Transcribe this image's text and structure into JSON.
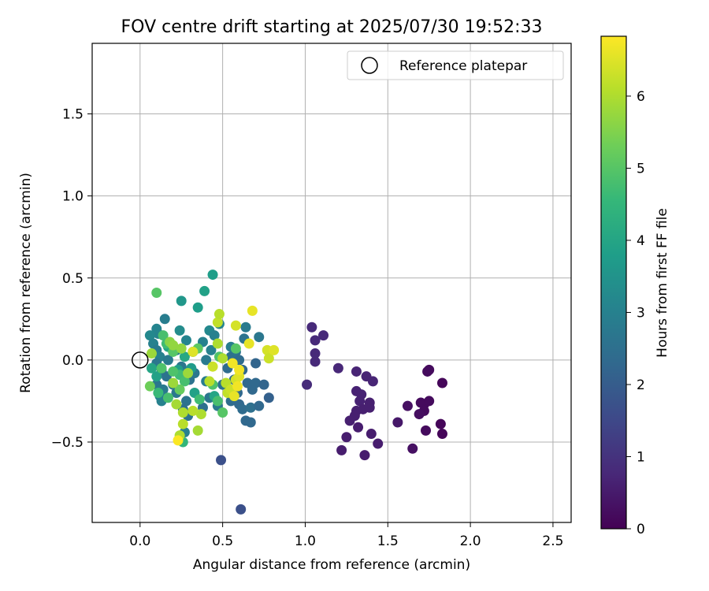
{
  "chart_data": {
    "type": "scatter",
    "title": "FOV centre drift starting at 2025/07/30 19:52:33",
    "xlabel": "Angular distance from reference (arcmin)",
    "ylabel": "Rotation from reference (arcmin)",
    "xlim": [
      -0.29,
      2.61
    ],
    "ylim": [
      -0.99,
      1.93
    ],
    "xticks": [
      0.0,
      0.5,
      1.0,
      1.5,
      2.0,
      2.5
    ],
    "xtick_labels": [
      "0.0",
      "0.5",
      "1.0",
      "1.5",
      "2.0",
      "2.5"
    ],
    "yticks": [
      -0.5,
      0.0,
      0.5,
      1.0,
      1.5
    ],
    "ytick_labels": [
      "−0.5",
      "0.0",
      "0.5",
      "1.0",
      "1.5"
    ],
    "grid": true,
    "legend": {
      "placement": "top-right",
      "entries": [
        "Reference platepar"
      ]
    },
    "reference_point": {
      "x": 0.0,
      "y": 0.0,
      "label": "Reference platepar"
    },
    "colorbar": {
      "label": "Hours from first FF file",
      "min": 0,
      "max": 6.83,
      "ticks": [
        0,
        1,
        2,
        3,
        4,
        5,
        6
      ],
      "tick_labels": [
        "0",
        "1",
        "2",
        "3",
        "4",
        "5",
        "6"
      ],
      "colormap": "viridis",
      "stops": [
        "#440154",
        "#482878",
        "#3e4989",
        "#31688e",
        "#26828e",
        "#1f9e89",
        "#35b779",
        "#6ece58",
        "#b5de2b",
        "#fde725"
      ]
    },
    "series": [
      {
        "values_note": "x = angular distance (arcmin), y = rotation (arcmin), c = hours from first FF file",
        "points": [
          {
            "x": 1.04,
            "y": 0.2,
            "c": 0.8
          },
          {
            "x": 1.11,
            "y": 0.15,
            "c": 0.8
          },
          {
            "x": 1.06,
            "y": 0.12,
            "c": 0.8
          },
          {
            "x": 1.06,
            "y": 0.04,
            "c": 0.8
          },
          {
            "x": 1.06,
            "y": -0.01,
            "c": 0.8
          },
          {
            "x": 1.01,
            "y": -0.15,
            "c": 0.85
          },
          {
            "x": 1.2,
            "y": -0.05,
            "c": 0.75
          },
          {
            "x": 1.31,
            "y": -0.07,
            "c": 0.7
          },
          {
            "x": 1.37,
            "y": -0.1,
            "c": 0.7
          },
          {
            "x": 1.41,
            "y": -0.13,
            "c": 0.7
          },
          {
            "x": 1.31,
            "y": -0.19,
            "c": 0.65
          },
          {
            "x": 1.34,
            "y": -0.21,
            "c": 0.65
          },
          {
            "x": 1.33,
            "y": -0.25,
            "c": 0.65
          },
          {
            "x": 1.39,
            "y": -0.26,
            "c": 0.6
          },
          {
            "x": 1.35,
            "y": -0.3,
            "c": 0.6
          },
          {
            "x": 1.39,
            "y": -0.29,
            "c": 0.6
          },
          {
            "x": 1.31,
            "y": -0.31,
            "c": 0.6
          },
          {
            "x": 1.3,
            "y": -0.34,
            "c": 0.6
          },
          {
            "x": 1.27,
            "y": -0.37,
            "c": 0.6
          },
          {
            "x": 1.32,
            "y": -0.41,
            "c": 0.55
          },
          {
            "x": 1.25,
            "y": -0.47,
            "c": 0.55
          },
          {
            "x": 1.22,
            "y": -0.55,
            "c": 0.55
          },
          {
            "x": 1.36,
            "y": -0.58,
            "c": 0.55
          },
          {
            "x": 1.4,
            "y": -0.45,
            "c": 0.55
          },
          {
            "x": 1.44,
            "y": -0.51,
            "c": 0.55
          },
          {
            "x": 1.56,
            "y": -0.38,
            "c": 0.45
          },
          {
            "x": 1.75,
            "y": -0.06,
            "c": 0.2
          },
          {
            "x": 1.74,
            "y": -0.07,
            "c": 0.2
          },
          {
            "x": 1.83,
            "y": -0.14,
            "c": 0.1
          },
          {
            "x": 1.62,
            "y": -0.28,
            "c": 0.3
          },
          {
            "x": 1.7,
            "y": -0.26,
            "c": 0.2
          },
          {
            "x": 1.72,
            "y": -0.27,
            "c": 0.2
          },
          {
            "x": 1.75,
            "y": -0.25,
            "c": 0.2
          },
          {
            "x": 1.72,
            "y": -0.31,
            "c": 0.2
          },
          {
            "x": 1.69,
            "y": -0.33,
            "c": 0.25
          },
          {
            "x": 1.82,
            "y": -0.39,
            "c": 0.1
          },
          {
            "x": 1.73,
            "y": -0.43,
            "c": 0.2
          },
          {
            "x": 1.83,
            "y": -0.45,
            "c": 0.1
          },
          {
            "x": 1.65,
            "y": -0.54,
            "c": 0.3
          },
          {
            "x": 0.49,
            "y": -0.61,
            "c": 1.7
          },
          {
            "x": 0.61,
            "y": -0.91,
            "c": 1.7
          },
          {
            "x": 0.11,
            "y": 0.16,
            "c": 3.0
          },
          {
            "x": 0.15,
            "y": 0.25,
            "c": 2.9
          },
          {
            "x": 0.1,
            "y": 0.19,
            "c": 3.1
          },
          {
            "x": 0.06,
            "y": 0.15,
            "c": 3.2
          },
          {
            "x": 0.08,
            "y": 0.1,
            "c": 3.0
          },
          {
            "x": 0.1,
            "y": 0.06,
            "c": 2.8
          },
          {
            "x": 0.12,
            "y": 0.02,
            "c": 3.0
          },
          {
            "x": 0.1,
            "y": -0.02,
            "c": 2.7
          },
          {
            "x": 0.13,
            "y": -0.06,
            "c": 2.8
          },
          {
            "x": 0.16,
            "y": -0.1,
            "c": 2.6
          },
          {
            "x": 0.1,
            "y": -0.15,
            "c": 2.7
          },
          {
            "x": 0.14,
            "y": -0.18,
            "c": 2.8
          },
          {
            "x": 0.12,
            "y": -0.22,
            "c": 3.0
          },
          {
            "x": 0.13,
            "y": -0.25,
            "c": 3.0
          },
          {
            "x": 0.2,
            "y": -0.15,
            "c": 2.7
          },
          {
            "x": 0.22,
            "y": 0.06,
            "c": 2.9
          },
          {
            "x": 0.24,
            "y": 0.18,
            "c": 3.3
          },
          {
            "x": 0.28,
            "y": 0.12,
            "c": 3.1
          },
          {
            "x": 0.32,
            "y": 0.05,
            "c": 2.9
          },
          {
            "x": 0.25,
            "y": -0.04,
            "c": 2.7
          },
          {
            "x": 0.3,
            "y": -0.12,
            "c": 2.6
          },
          {
            "x": 0.22,
            "y": -0.2,
            "c": 2.7
          },
          {
            "x": 0.28,
            "y": -0.25,
            "c": 2.6
          },
          {
            "x": 0.26,
            "y": -0.3,
            "c": 2.5
          },
          {
            "x": 0.29,
            "y": -0.34,
            "c": 2.6
          },
          {
            "x": 0.27,
            "y": -0.44,
            "c": 3.0
          },
          {
            "x": 0.38,
            "y": 0.11,
            "c": 3.0
          },
          {
            "x": 0.42,
            "y": 0.18,
            "c": 3.2
          },
          {
            "x": 0.45,
            "y": 0.15,
            "c": 3.0
          },
          {
            "x": 0.4,
            "y": 0.0,
            "c": 2.8
          },
          {
            "x": 0.4,
            "y": -0.13,
            "c": 2.9
          },
          {
            "x": 0.42,
            "y": -0.23,
            "c": 2.7
          },
          {
            "x": 0.38,
            "y": -0.29,
            "c": 2.5
          },
          {
            "x": 0.47,
            "y": -0.28,
            "c": 2.8
          },
          {
            "x": 0.5,
            "y": -0.15,
            "c": 2.6
          },
          {
            "x": 0.53,
            "y": -0.05,
            "c": 2.4
          },
          {
            "x": 0.55,
            "y": 0.02,
            "c": 2.5
          },
          {
            "x": 0.58,
            "y": 0.05,
            "c": 2.6
          },
          {
            "x": 0.6,
            "y": 0.0,
            "c": 2.4
          },
          {
            "x": 0.62,
            "y": -0.06,
            "c": 2.3
          },
          {
            "x": 0.57,
            "y": -0.12,
            "c": 2.4
          },
          {
            "x": 0.54,
            "y": -0.18,
            "c": 2.5
          },
          {
            "x": 0.59,
            "y": -0.2,
            "c": 2.3
          },
          {
            "x": 0.55,
            "y": -0.25,
            "c": 2.4
          },
          {
            "x": 0.6,
            "y": -0.27,
            "c": 2.3
          },
          {
            "x": 0.62,
            "y": -0.3,
            "c": 2.4
          },
          {
            "x": 0.67,
            "y": -0.29,
            "c": 2.5
          },
          {
            "x": 0.68,
            "y": -0.18,
            "c": 2.3
          },
          {
            "x": 0.65,
            "y": -0.14,
            "c": 2.3
          },
          {
            "x": 0.7,
            "y": -0.02,
            "c": 2.2
          },
          {
            "x": 0.63,
            "y": 0.13,
            "c": 2.6
          },
          {
            "x": 0.64,
            "y": 0.2,
            "c": 2.8
          },
          {
            "x": 0.72,
            "y": 0.14,
            "c": 2.7
          },
          {
            "x": 0.7,
            "y": -0.14,
            "c": 2.3
          },
          {
            "x": 0.75,
            "y": -0.15,
            "c": 2.2
          },
          {
            "x": 0.78,
            "y": -0.23,
            "c": 2.1
          },
          {
            "x": 0.72,
            "y": -0.28,
            "c": 2.3
          },
          {
            "x": 0.64,
            "y": -0.37,
            "c": 2.3
          },
          {
            "x": 0.67,
            "y": -0.38,
            "c": 2.3
          },
          {
            "x": 0.55,
            "y": 0.08,
            "c": 2.9
          },
          {
            "x": 0.48,
            "y": 0.22,
            "c": 3.1
          },
          {
            "x": 0.43,
            "y": 0.06,
            "c": 3.0
          },
          {
            "x": 0.33,
            "y": -0.08,
            "c": 2.7
          },
          {
            "x": 0.17,
            "y": 0.0,
            "c": 2.8
          },
          {
            "x": 0.44,
            "y": 0.52,
            "c": 3.8
          },
          {
            "x": 0.39,
            "y": 0.42,
            "c": 3.9
          },
          {
            "x": 0.25,
            "y": 0.36,
            "c": 3.6
          },
          {
            "x": 0.35,
            "y": 0.32,
            "c": 3.8
          },
          {
            "x": 0.17,
            "y": 0.08,
            "c": 4.0
          },
          {
            "x": 0.07,
            "y": -0.05,
            "c": 4.0
          },
          {
            "x": 0.1,
            "y": -0.1,
            "c": 3.9
          },
          {
            "x": 0.23,
            "y": -0.06,
            "c": 3.8
          },
          {
            "x": 0.27,
            "y": 0.02,
            "c": 4.1
          },
          {
            "x": 0.33,
            "y": -0.2,
            "c": 3.9
          },
          {
            "x": 0.45,
            "y": -0.22,
            "c": 4.0
          },
          {
            "x": 0.31,
            "y": -0.05,
            "c": 3.7
          },
          {
            "x": 0.26,
            "y": -0.5,
            "c": 4.5
          },
          {
            "x": 0.1,
            "y": 0.41,
            "c": 5.0
          },
          {
            "x": 0.14,
            "y": 0.15,
            "c": 4.8
          },
          {
            "x": 0.16,
            "y": 0.1,
            "c": 4.7
          },
          {
            "x": 0.13,
            "y": -0.05,
            "c": 4.9
          },
          {
            "x": 0.11,
            "y": -0.2,
            "c": 4.6
          },
          {
            "x": 0.17,
            "y": -0.23,
            "c": 4.8
          },
          {
            "x": 0.24,
            "y": -0.09,
            "c": 4.7
          },
          {
            "x": 0.2,
            "y": -0.07,
            "c": 4.9
          },
          {
            "x": 0.27,
            "y": -0.13,
            "c": 4.8
          },
          {
            "x": 0.36,
            "y": -0.24,
            "c": 4.7
          },
          {
            "x": 0.44,
            "y": -0.15,
            "c": 4.9
          },
          {
            "x": 0.47,
            "y": -0.25,
            "c": 4.8
          },
          {
            "x": 0.5,
            "y": -0.32,
            "c": 5.0
          },
          {
            "x": 0.58,
            "y": 0.07,
            "c": 5.0
          },
          {
            "x": 0.48,
            "y": 0.02,
            "c": 4.9
          },
          {
            "x": 0.35,
            "y": 0.07,
            "c": 5.1
          },
          {
            "x": 0.2,
            "y": 0.05,
            "c": 5.0
          },
          {
            "x": 0.06,
            "y": -0.16,
            "c": 5.3
          },
          {
            "x": 0.24,
            "y": -0.18,
            "c": 5.2
          },
          {
            "x": 0.07,
            "y": 0.04,
            "c": 5.8
          },
          {
            "x": 0.18,
            "y": 0.11,
            "c": 5.6
          },
          {
            "x": 0.2,
            "y": 0.09,
            "c": 5.7
          },
          {
            "x": 0.25,
            "y": 0.07,
            "c": 5.7
          },
          {
            "x": 0.29,
            "y": -0.08,
            "c": 5.8
          },
          {
            "x": 0.2,
            "y": -0.14,
            "c": 5.8
          },
          {
            "x": 0.22,
            "y": -0.27,
            "c": 5.9
          },
          {
            "x": 0.26,
            "y": -0.32,
            "c": 6.0
          },
          {
            "x": 0.26,
            "y": -0.39,
            "c": 6.1
          },
          {
            "x": 0.24,
            "y": -0.46,
            "c": 6.0
          },
          {
            "x": 0.35,
            "y": -0.43,
            "c": 5.9
          },
          {
            "x": 0.37,
            "y": -0.33,
            "c": 6.0
          },
          {
            "x": 0.32,
            "y": -0.31,
            "c": 6.1
          },
          {
            "x": 0.42,
            "y": -0.13,
            "c": 6.1
          },
          {
            "x": 0.44,
            "y": -0.04,
            "c": 6.3
          },
          {
            "x": 0.47,
            "y": 0.23,
            "c": 6.2
          },
          {
            "x": 0.48,
            "y": 0.28,
            "c": 6.1
          },
          {
            "x": 0.47,
            "y": 0.1,
            "c": 6.0
          },
          {
            "x": 0.5,
            "y": 0.01,
            "c": 6.0
          },
          {
            "x": 0.52,
            "y": -0.14,
            "c": 6.1
          },
          {
            "x": 0.53,
            "y": -0.2,
            "c": 6.2
          },
          {
            "x": 0.55,
            "y": -0.18,
            "c": 6.3
          },
          {
            "x": 0.58,
            "y": -0.12,
            "c": 6.4
          },
          {
            "x": 0.6,
            "y": -0.1,
            "c": 6.5
          },
          {
            "x": 0.58,
            "y": 0.21,
            "c": 6.4
          },
          {
            "x": 0.66,
            "y": 0.1,
            "c": 6.6
          },
          {
            "x": 0.68,
            "y": 0.3,
            "c": 6.6
          },
          {
            "x": 0.77,
            "y": 0.06,
            "c": 6.4
          },
          {
            "x": 0.78,
            "y": 0.01,
            "c": 6.3
          },
          {
            "x": 0.81,
            "y": 0.06,
            "c": 6.5
          },
          {
            "x": 0.6,
            "y": -0.06,
            "c": 6.7
          },
          {
            "x": 0.59,
            "y": -0.16,
            "c": 6.7
          },
          {
            "x": 0.57,
            "y": -0.22,
            "c": 6.6
          },
          {
            "x": 0.23,
            "y": -0.49,
            "c": 6.8
          },
          {
            "x": 0.32,
            "y": 0.05,
            "c": 6.5
          },
          {
            "x": 0.56,
            "y": -0.02,
            "c": 6.7
          }
        ]
      }
    ]
  }
}
